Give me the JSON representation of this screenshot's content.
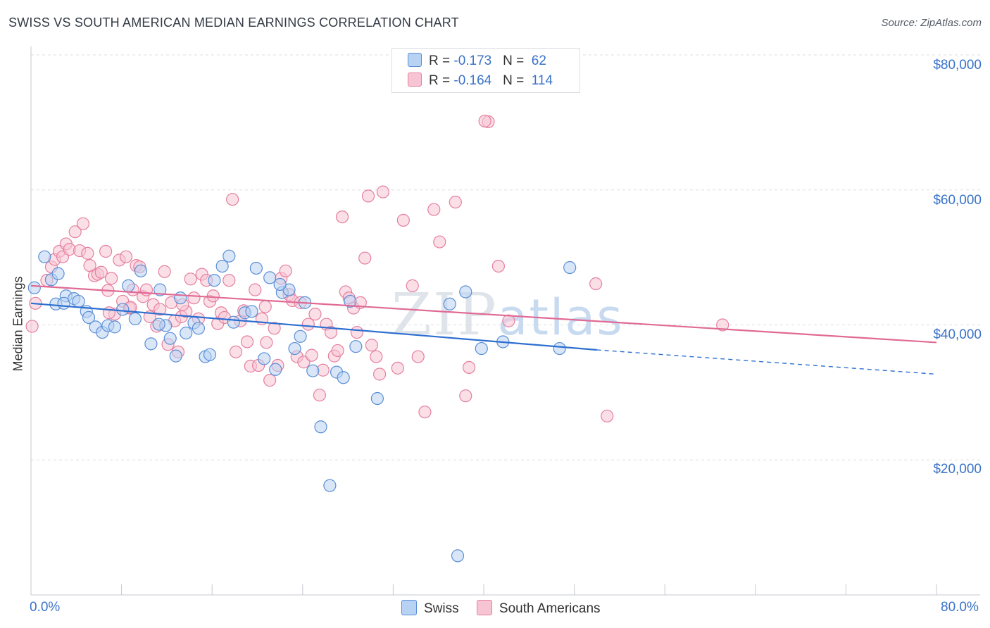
{
  "title": "SWISS VS SOUTH AMERICAN MEDIAN EARNINGS CORRELATION CHART",
  "source": "Source: ZipAtlas.com",
  "watermark": {
    "zip": "ZIP",
    "atlas": "atlas"
  },
  "legend": {
    "rows": [
      {
        "r_label": "R = ",
        "r_value": "-0.173",
        "n_label": "N = ",
        "n_value": "62"
      },
      {
        "r_label": "R = ",
        "r_value": "-0.164",
        "n_label": "N = ",
        "n_value": "114"
      }
    ]
  },
  "colors": {
    "swiss_fill": "#b8d2f3",
    "swiss_stroke": "#5b8fd6",
    "swiss_line": "#2d6fd0",
    "sa_fill": "#f7c4d4",
    "sa_stroke": "#e57fa0",
    "sa_line": "#e06a94",
    "grid": "#d9dde3",
    "tick_text": "#3a73c8"
  },
  "chart_data": {
    "type": "scatter",
    "title": "SWISS VS SOUTH AMERICAN MEDIAN EARNINGS CORRELATION CHART",
    "xlabel": "",
    "ylabel": "Median Earnings",
    "xlim": [
      0,
      80
    ],
    "ylim": [
      0,
      80000
    ],
    "x_tick_labels": [
      "0.0%",
      "80.0%"
    ],
    "y_ticks": [
      {
        "value": 20000,
        "label": "$20,000"
      },
      {
        "value": 40000,
        "label": "$40,000"
      },
      {
        "value": 60000,
        "label": "$60,000"
      },
      {
        "value": 80000,
        "label": "$80,000"
      }
    ],
    "grid": true,
    "legend_position": "top-center",
    "series": [
      {
        "name": "Swiss",
        "r": -0.173,
        "n": 62,
        "trend": {
          "x0": 0,
          "y0": 43200,
          "x1": 50,
          "y1": 36300,
          "dash_to_x": 80,
          "dash_to_y": 32700
        },
        "points": [
          [
            0.3,
            45500
          ],
          [
            1.2,
            50100
          ],
          [
            1.8,
            46700
          ],
          [
            2.4,
            47600
          ],
          [
            2.2,
            43100
          ],
          [
            3.1,
            44300
          ],
          [
            2.9,
            43200
          ],
          [
            3.8,
            43900
          ],
          [
            4.2,
            43500
          ],
          [
            4.9,
            42000
          ],
          [
            5.1,
            41100
          ],
          [
            5.7,
            39700
          ],
          [
            6.3,
            38900
          ],
          [
            6.8,
            39900
          ],
          [
            7.4,
            39700
          ],
          [
            8.1,
            42300
          ],
          [
            8.6,
            45800
          ],
          [
            9.2,
            40900
          ],
          [
            9.7,
            48000
          ],
          [
            10.6,
            37200
          ],
          [
            11.4,
            45200
          ],
          [
            11.9,
            39900
          ],
          [
            12.3,
            38000
          ],
          [
            12.8,
            35400
          ],
          [
            13.2,
            44000
          ],
          [
            13.7,
            38800
          ],
          [
            14.4,
            40300
          ],
          [
            14.8,
            39500
          ],
          [
            15.4,
            35300
          ],
          [
            15.8,
            35600
          ],
          [
            16.2,
            46600
          ],
          [
            16.9,
            48700
          ],
          [
            17.5,
            50200
          ],
          [
            17.9,
            40400
          ],
          [
            18.9,
            41800
          ],
          [
            19.5,
            42000
          ],
          [
            19.9,
            48400
          ],
          [
            20.6,
            35000
          ],
          [
            21.1,
            47000
          ],
          [
            21.6,
            33400
          ],
          [
            22.2,
            44800
          ],
          [
            22.8,
            45200
          ],
          [
            23.3,
            36500
          ],
          [
            23.8,
            38300
          ],
          [
            24.2,
            43300
          ],
          [
            24.9,
            33200
          ],
          [
            25.6,
            24900
          ],
          [
            26.4,
            16200
          ],
          [
            27.0,
            33000
          ],
          [
            27.6,
            32200
          ],
          [
            28.2,
            43500
          ],
          [
            28.7,
            36800
          ],
          [
            30.6,
            29100
          ],
          [
            37.0,
            43100
          ],
          [
            37.7,
            5800
          ],
          [
            38.4,
            44900
          ],
          [
            39.8,
            36500
          ],
          [
            46.7,
            36500
          ],
          [
            47.6,
            48500
          ],
          [
            41.7,
            37500
          ],
          [
            22.0,
            46000
          ],
          [
            11.3,
            40100
          ]
        ]
      },
      {
        "name": "South Americans",
        "r": -0.164,
        "n": 114,
        "trend": {
          "x0": 0,
          "y0": 45800,
          "x1": 80,
          "y1": 37400
        },
        "points": [
          [
            0.1,
            39800
          ],
          [
            0.4,
            43200
          ],
          [
            1.4,
            46600
          ],
          [
            1.8,
            48600
          ],
          [
            2.1,
            49700
          ],
          [
            2.5,
            50900
          ],
          [
            2.8,
            50100
          ],
          [
            3.1,
            52000
          ],
          [
            3.4,
            51200
          ],
          [
            3.9,
            53800
          ],
          [
            4.3,
            51000
          ],
          [
            4.6,
            55000
          ],
          [
            5.0,
            50600
          ],
          [
            5.2,
            48800
          ],
          [
            5.6,
            47300
          ],
          [
            5.9,
            47500
          ],
          [
            6.2,
            47800
          ],
          [
            6.6,
            50900
          ],
          [
            6.8,
            45100
          ],
          [
            7.1,
            46900
          ],
          [
            7.4,
            41600
          ],
          [
            7.8,
            49600
          ],
          [
            8.1,
            43500
          ],
          [
            8.4,
            50100
          ],
          [
            8.7,
            42500
          ],
          [
            9.0,
            45200
          ],
          [
            9.3,
            48800
          ],
          [
            9.6,
            48600
          ],
          [
            9.9,
            44200
          ],
          [
            10.2,
            45200
          ],
          [
            10.5,
            41200
          ],
          [
            10.8,
            43000
          ],
          [
            11.1,
            39800
          ],
          [
            11.4,
            42300
          ],
          [
            11.8,
            47900
          ],
          [
            12.1,
            37100
          ],
          [
            12.4,
            43300
          ],
          [
            12.7,
            40600
          ],
          [
            13.0,
            36000
          ],
          [
            13.3,
            41200
          ],
          [
            13.7,
            42000
          ],
          [
            14.1,
            46800
          ],
          [
            14.4,
            44000
          ],
          [
            14.8,
            40900
          ],
          [
            15.1,
            47500
          ],
          [
            15.5,
            46600
          ],
          [
            15.8,
            43500
          ],
          [
            16.1,
            44300
          ],
          [
            16.5,
            40200
          ],
          [
            16.8,
            41800
          ],
          [
            17.1,
            41100
          ],
          [
            17.5,
            46600
          ],
          [
            17.8,
            58600
          ],
          [
            18.1,
            36000
          ],
          [
            18.5,
            40600
          ],
          [
            18.8,
            42100
          ],
          [
            19.1,
            37500
          ],
          [
            19.4,
            33900
          ],
          [
            19.8,
            45200
          ],
          [
            20.1,
            34000
          ],
          [
            20.4,
            40900
          ],
          [
            20.8,
            37400
          ],
          [
            21.1,
            31800
          ],
          [
            21.5,
            39500
          ],
          [
            21.8,
            34000
          ],
          [
            22.1,
            46900
          ],
          [
            22.5,
            48000
          ],
          [
            22.8,
            44500
          ],
          [
            23.1,
            43600
          ],
          [
            23.5,
            35300
          ],
          [
            23.8,
            43300
          ],
          [
            24.1,
            34500
          ],
          [
            24.5,
            40100
          ],
          [
            24.8,
            35500
          ],
          [
            25.1,
            41600
          ],
          [
            25.5,
            29600
          ],
          [
            25.8,
            33300
          ],
          [
            26.1,
            40100
          ],
          [
            26.5,
            38900
          ],
          [
            26.8,
            35400
          ],
          [
            27.1,
            36200
          ],
          [
            27.5,
            56000
          ],
          [
            27.8,
            44900
          ],
          [
            28.1,
            44000
          ],
          [
            28.5,
            42500
          ],
          [
            28.8,
            38900
          ],
          [
            29.1,
            43300
          ],
          [
            29.5,
            49900
          ],
          [
            29.8,
            59100
          ],
          [
            30.1,
            37000
          ],
          [
            30.5,
            35300
          ],
          [
            30.8,
            32700
          ],
          [
            31.1,
            59700
          ],
          [
            32.4,
            33600
          ],
          [
            32.9,
            55500
          ],
          [
            33.7,
            45800
          ],
          [
            34.2,
            35300
          ],
          [
            34.8,
            27100
          ],
          [
            35.6,
            57100
          ],
          [
            36.1,
            52300
          ],
          [
            37.5,
            58200
          ],
          [
            38.7,
            33700
          ],
          [
            38.4,
            29500
          ],
          [
            40.4,
            70100
          ],
          [
            40.1,
            70200
          ],
          [
            41.3,
            48700
          ],
          [
            42.2,
            40600
          ],
          [
            49.9,
            46100
          ],
          [
            50.9,
            26500
          ],
          [
            61.1,
            40000
          ],
          [
            13.4,
            43000
          ],
          [
            6.9,
            41800
          ],
          [
            8.8,
            42600
          ],
          [
            20.7,
            42700
          ]
        ]
      }
    ]
  },
  "bottom_legend": [
    {
      "label": "Swiss"
    },
    {
      "label": "South Americans"
    }
  ]
}
